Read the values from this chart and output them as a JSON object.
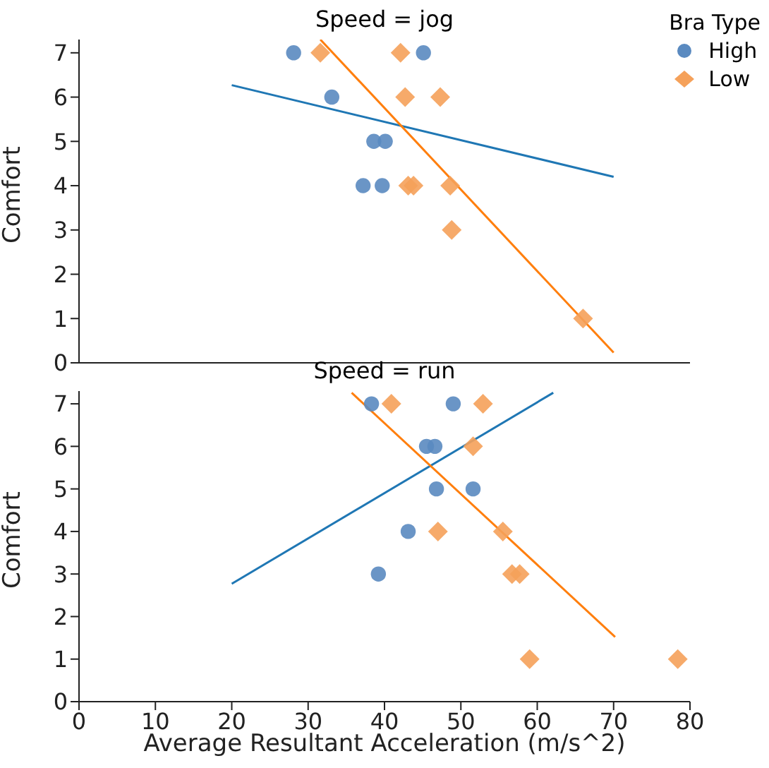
{
  "chart_data": [
    {
      "type": "scatter",
      "title": "Speed = jog",
      "ylabel": "Comfort",
      "xlim": [
        0,
        80
      ],
      "xticks": [
        0,
        10,
        20,
        30,
        40,
        50,
        60,
        70,
        80
      ],
      "ylim": [
        0,
        7.3
      ],
      "yticks": [
        0,
        1,
        2,
        3,
        4,
        5,
        6,
        7
      ],
      "tick_labels": "y",
      "grid": false,
      "legend": "top right",
      "legend_title": "Bra Type",
      "series": [
        {
          "name": "High",
          "color": "#5a8ac0",
          "marker": "circle",
          "x": [
            28.1,
            45.1,
            33.1,
            38.6,
            40.1,
            37.2,
            39.7
          ],
          "values": [
            7,
            7,
            6,
            5,
            5,
            4,
            4
          ]
        },
        {
          "name": "Low",
          "color": "#f5a15a",
          "marker": "diamond",
          "x": [
            31.6,
            42.1,
            42.7,
            47.3,
            43.1,
            43.8,
            48.6,
            48.8,
            66.0
          ],
          "values": [
            7,
            7,
            6,
            6,
            4,
            4,
            4,
            3,
            1
          ]
        },
        {
          "type": "line",
          "color": "#1f77b4",
          "x": [
            20,
            70
          ],
          "values": [
            6.27,
            4.2
          ]
        },
        {
          "type": "line",
          "color": "#ff7f0e",
          "x": [
            31.6,
            70
          ],
          "values": [
            7.3,
            0.23
          ]
        }
      ]
    },
    {
      "type": "scatter",
      "title": "Speed = run",
      "xlabel": "Average Resultant Acceleration (m/s^2)",
      "ylabel": "Comfort",
      "xlim": [
        0,
        80
      ],
      "xticks": [
        0,
        10,
        20,
        30,
        40,
        50,
        60,
        70,
        80
      ],
      "ylim": [
        0,
        7.3
      ],
      "yticks": [
        0,
        1,
        2,
        3,
        4,
        5,
        6,
        7
      ],
      "grid": false,
      "series": [
        {
          "color": "#5a8ac0",
          "marker": "circle",
          "x": [
            38.3,
            49.0,
            45.5,
            46.6,
            46.8,
            51.6,
            43.1,
            39.2
          ],
          "values": [
            7,
            7,
            6,
            6,
            5,
            5,
            4,
            3
          ]
        },
        {
          "color": "#f5a15a",
          "marker": "diamond",
          "x": [
            40.9,
            52.9,
            51.6,
            47.0,
            55.5,
            56.7,
            57.7,
            59.0,
            78.4
          ],
          "values": [
            7,
            7,
            6,
            4,
            4,
            3,
            3,
            1,
            1
          ]
        },
        {
          "type": "line",
          "color": "#1f77b4",
          "x": [
            20,
            62.1
          ],
          "values": [
            2.77,
            7.26
          ]
        },
        {
          "type": "line",
          "color": "#ff7f0e",
          "x": [
            35.7,
            70.2
          ],
          "values": [
            7.26,
            1.52
          ]
        }
      ]
    }
  ]
}
